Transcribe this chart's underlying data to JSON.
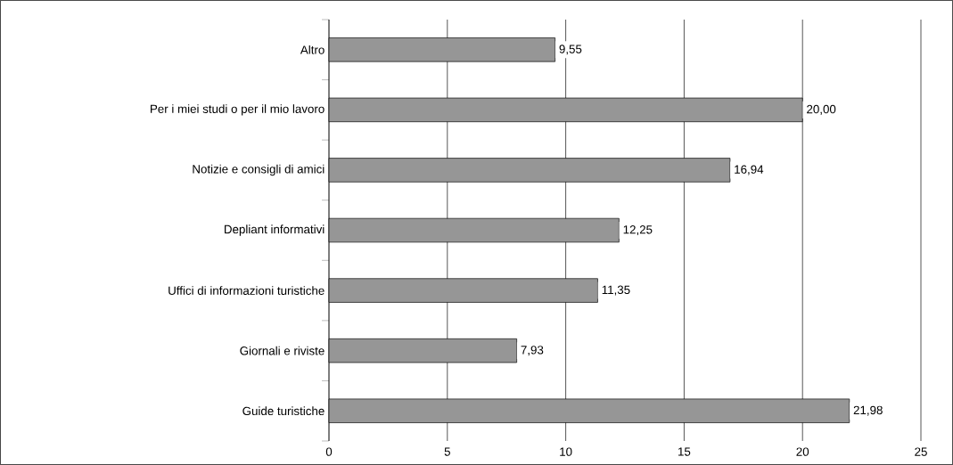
{
  "chart_data": {
    "type": "bar",
    "orientation": "horizontal",
    "categories": [
      "Altro",
      "Per i miei studi o per il mio lavoro",
      "Notizie e consigli di amici",
      "Depliant informativi",
      "Uffici di informazioni turistiche",
      "Giornali e riviste",
      "Guide turistiche"
    ],
    "values": [
      9.55,
      20.0,
      16.94,
      12.25,
      11.35,
      7.93,
      21.98
    ],
    "value_labels": [
      "9,55",
      "20,00",
      "16,94",
      "12,25",
      "11,35",
      "7,93",
      "21,98"
    ],
    "color": "#969696",
    "xlim": [
      0,
      25
    ],
    "xticks": [
      0,
      5,
      10,
      15,
      20,
      25
    ],
    "grid": "x"
  }
}
